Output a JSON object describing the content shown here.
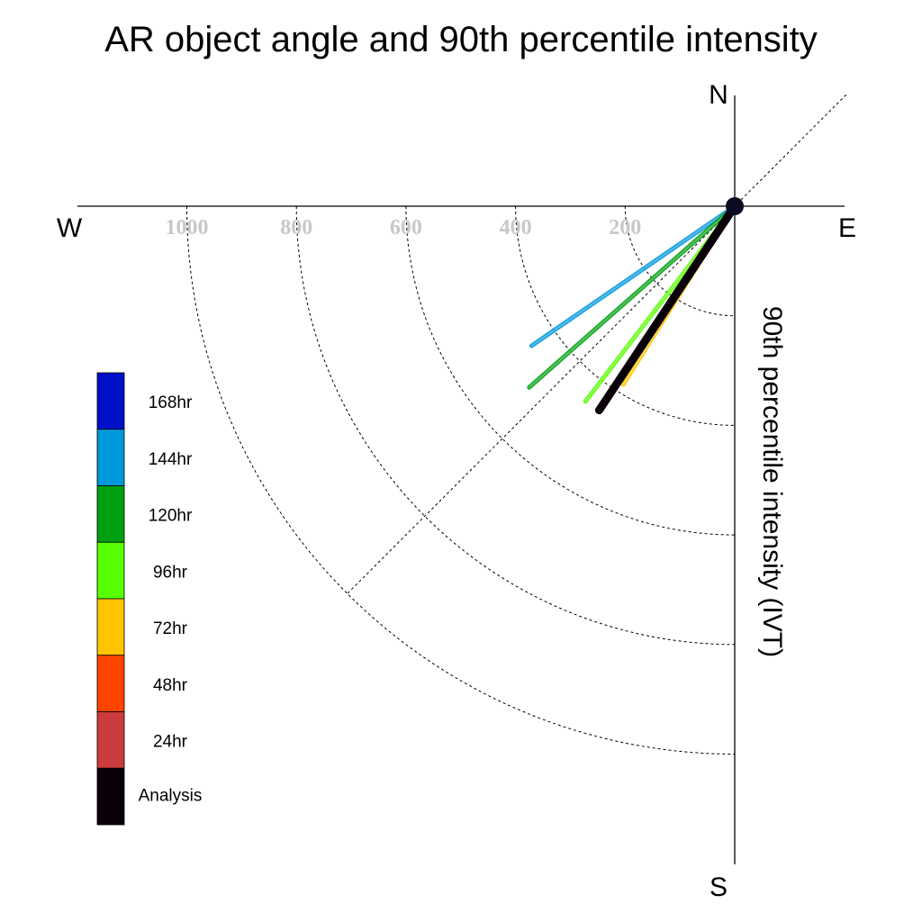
{
  "chart_data": {
    "type": "polar-vector",
    "title": "AR object angle and 90th percentile intensity",
    "ylabel": "90th percentile intensity (IVT)",
    "compass": {
      "north": "N",
      "south": "S",
      "east": "E",
      "west": "W"
    },
    "radial_ticks": [
      200,
      400,
      600,
      800,
      1000
    ],
    "rlim": [
      0,
      1200
    ],
    "series": [
      {
        "name": "168hr",
        "color": "#0010c8",
        "angle_deg": null,
        "intensity": null
      },
      {
        "name": "144hr",
        "color": "#0098dc",
        "angle_deg": 235.5,
        "intensity": 450
      },
      {
        "name": "120hr",
        "color": "#00a010",
        "angle_deg": 228.6,
        "intensity": 500
      },
      {
        "name": "96hr",
        "color": "#58ff00",
        "angle_deg": 217.4,
        "intensity": 449
      },
      {
        "name": "72hr",
        "color": "#ffc400",
        "angle_deg": 212.0,
        "intensity": 384
      },
      {
        "name": "48hr",
        "color": "#ff4400",
        "angle_deg": 213.6,
        "intensity": 447
      },
      {
        "name": "24hr",
        "color": "#cc3c3c",
        "angle_deg": 213.6,
        "intensity": 447
      },
      {
        "name": "Analysis",
        "color": "#0a0008",
        "angle_deg": 213.6,
        "intensity": 447
      }
    ]
  }
}
